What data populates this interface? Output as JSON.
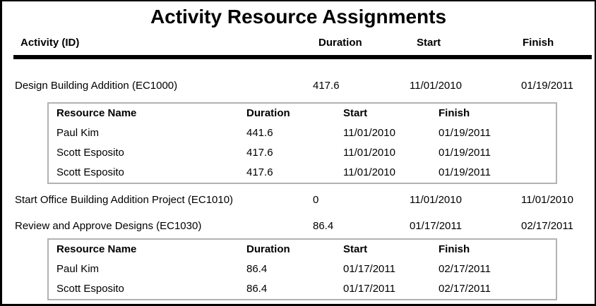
{
  "report": {
    "title": "Activity Resource Assignments",
    "columns": {
      "activity": "Activity (ID)",
      "duration": "Duration",
      "start": "Start",
      "finish": "Finish"
    },
    "resource_columns": {
      "name": "Resource Name",
      "duration": "Duration",
      "start": "Start",
      "finish": "Finish"
    },
    "activities": [
      {
        "name": "Design Building Addition (EC1000)",
        "duration": "417.6",
        "start": "11/01/2010",
        "finish": "01/19/2011",
        "resources": [
          {
            "name": "Paul Kim",
            "duration": "441.6",
            "start": "11/01/2010",
            "finish": "01/19/2011"
          },
          {
            "name": "Scott Esposito",
            "duration": "417.6",
            "start": "11/01/2010",
            "finish": "01/19/2011"
          },
          {
            "name": "Scott Esposito",
            "duration": "417.6",
            "start": "11/01/2010",
            "finish": "01/19/2011"
          }
        ]
      },
      {
        "name": "Start Office Building Addition Project (EC1010)",
        "duration": "0",
        "start": "11/01/2010",
        "finish": "11/01/2010",
        "resources": []
      },
      {
        "name": "Review and Approve Designs (EC1030)",
        "duration": "86.4",
        "start": "01/17/2011",
        "finish": "02/17/2011",
        "resources": [
          {
            "name": "Paul Kim",
            "duration": "86.4",
            "start": "01/17/2011",
            "finish": "02/17/2011"
          },
          {
            "name": "Scott Esposito",
            "duration": "86.4",
            "start": "01/17/2011",
            "finish": "02/17/2011"
          }
        ]
      }
    ],
    "colors": {
      "background": "#ffffff",
      "text": "#000000",
      "frame": "#000000",
      "rule": "#000000",
      "nested_border": "#b2b2b2"
    }
  }
}
